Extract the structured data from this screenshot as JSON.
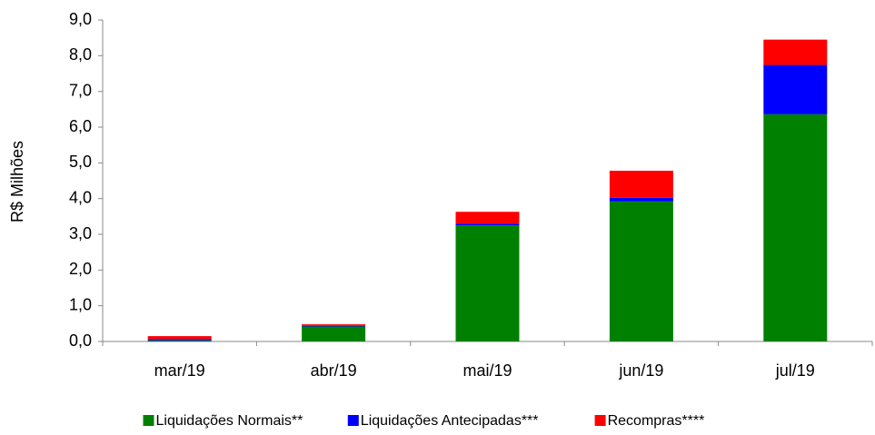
{
  "chart_data": {
    "type": "stacked_bar",
    "y_label": "R$ Milhões",
    "categories": [
      "mar/19",
      "abr/19",
      "mai/19",
      "jun/19",
      "jul/19"
    ],
    "series": [
      {
        "name": "Liquidações Normais**",
        "color": "#008000",
        "values": [
          0.03,
          0.42,
          3.25,
          3.92,
          6.36
        ]
      },
      {
        "name": "Liquidações Antecipadas***",
        "color": "#0000ff",
        "values": [
          0.04,
          0.02,
          0.05,
          0.1,
          1.38
        ]
      },
      {
        "name": "Recompras****",
        "color": "#ff0000",
        "values": [
          0.08,
          0.04,
          0.33,
          0.76,
          0.71
        ]
      }
    ],
    "ylim": [
      0,
      9
    ],
    "yticks": [
      {
        "value": 0,
        "label": "0,0"
      },
      {
        "value": 1,
        "label": "1,0"
      },
      {
        "value": 2,
        "label": "2,0"
      },
      {
        "value": 3,
        "label": "3,0"
      },
      {
        "value": 4,
        "label": "4,0"
      },
      {
        "value": 5,
        "label": "5,0"
      },
      {
        "value": 6,
        "label": "6,0"
      },
      {
        "value": 7,
        "label": "7,0"
      },
      {
        "value": 8,
        "label": "8,0"
      },
      {
        "value": 9,
        "label": "9,0"
      }
    ],
    "grid": false,
    "legend": "bottom"
  }
}
